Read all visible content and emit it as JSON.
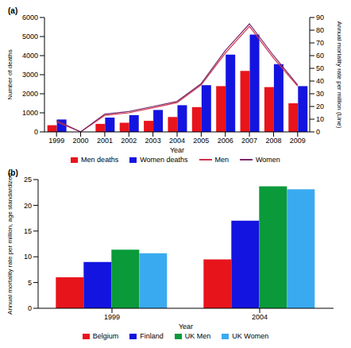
{
  "chart_data": [
    {
      "type": "bar",
      "title": "(a)",
      "categories": [
        "1999",
        "2000",
        "2001",
        "2002",
        "2003",
        "2004",
        "2005",
        "2006",
        "2007",
        "2008",
        "2009"
      ],
      "x_label": "Year",
      "y_label": "Number of deaths",
      "y2_label": "Annual mortality rate per million (Line)",
      "ylim": [
        0,
        6000
      ],
      "yticks": [
        0,
        1000,
        2000,
        3000,
        4000,
        5000,
        6000
      ],
      "y2lim": [
        0,
        90
      ],
      "y2ticks": [
        0,
        10,
        20,
        30,
        40,
        50,
        60,
        70,
        80,
        90
      ],
      "grid": false,
      "legend": "bottom",
      "series": [
        {
          "name": "Men deaths",
          "type": "bar",
          "color": "#e8141c",
          "values": [
            350,
            0,
            420,
            480,
            580,
            780,
            1300,
            2400,
            3200,
            2350,
            1500
          ]
        },
        {
          "name": "Women deaths",
          "type": "bar",
          "color": "#1414e0",
          "values": [
            650,
            0,
            750,
            880,
            1150,
            1400,
            2450,
            4050,
            5100,
            3550,
            2400
          ]
        },
        {
          "name": "Men",
          "type": "line",
          "axis": "y2",
          "color": "#d0304a",
          "values": [
            8,
            0,
            13,
            15,
            19,
            23,
            37,
            62,
            83,
            58,
            36
          ]
        },
        {
          "name": "Women",
          "type": "line",
          "axis": "y2",
          "color": "#7a2a6a",
          "values": [
            9,
            0,
            14,
            16,
            20,
            24,
            38,
            64,
            85,
            60,
            37
          ]
        }
      ]
    },
    {
      "type": "bar",
      "title": "(b)",
      "categories": [
        "1999",
        "2004"
      ],
      "x_label": "Year",
      "y_label": "Annual mortality rate per million, age standardized",
      "ylim": [
        0,
        25
      ],
      "yticks": [
        0,
        5,
        10,
        15,
        20,
        25
      ],
      "grid": false,
      "legend": "bottom",
      "series": [
        {
          "name": "Belgium",
          "color": "#e8141c",
          "values": [
            6.0,
            9.5
          ]
        },
        {
          "name": "Finland",
          "color": "#1414e0",
          "values": [
            9.0,
            17.0
          ]
        },
        {
          "name": "UK Men",
          "color": "#0a9a3a",
          "values": [
            11.4,
            23.7
          ]
        },
        {
          "name": "UK Women",
          "color": "#3aaaf0",
          "values": [
            10.7,
            23.1
          ]
        }
      ]
    }
  ]
}
